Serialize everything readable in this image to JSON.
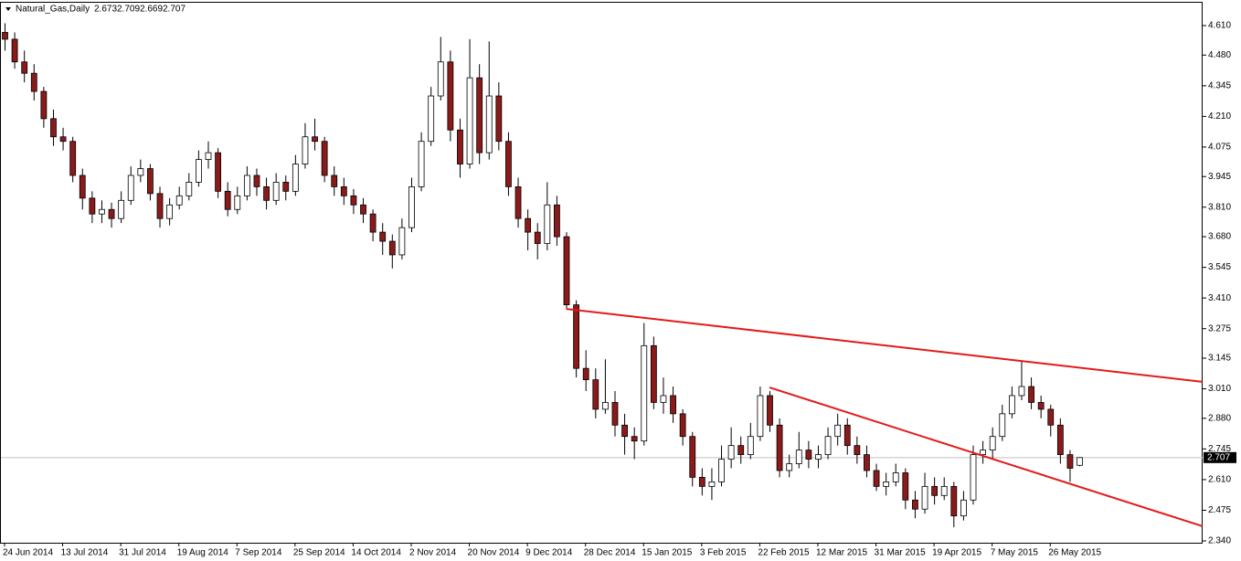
{
  "chart_data": {
    "type": "candlestick",
    "title": "Natural_Gas,Daily",
    "up_color": "#ffffff",
    "down_color": "#8b1a1a",
    "wick_color": "#000000",
    "trendline_color": "#e31a1a",
    "ylim": [
      2.34,
      4.61
    ],
    "yticks": [
      {
        "value": 4.61,
        "label": "4.610"
      },
      {
        "value": 4.48,
        "label": "4.480"
      },
      {
        "value": 4.345,
        "label": "4.345"
      },
      {
        "value": 4.21,
        "label": "4.210"
      },
      {
        "value": 4.075,
        "label": "4.075"
      },
      {
        "value": 3.945,
        "label": "3.945"
      },
      {
        "value": 3.81,
        "label": "3.810"
      },
      {
        "value": 3.68,
        "label": "3.680"
      },
      {
        "value": 3.545,
        "label": "3.545"
      },
      {
        "value": 3.41,
        "label": "3.410"
      },
      {
        "value": 3.275,
        "label": "3.275"
      },
      {
        "value": 3.145,
        "label": "3.145"
      },
      {
        "value": 3.01,
        "label": "3.010"
      },
      {
        "value": 2.88,
        "label": "2.880"
      },
      {
        "value": 2.745,
        "label": "2.745"
      },
      {
        "value": 2.61,
        "label": "2.610"
      },
      {
        "value": 2.475,
        "label": "2.475"
      },
      {
        "value": 2.34,
        "label": "2.340"
      }
    ],
    "categories": [
      "24 Jun 2014",
      null,
      null,
      null,
      null,
      null,
      "13 Jul 2014",
      null,
      null,
      null,
      null,
      null,
      "31 Jul 2014",
      null,
      null,
      null,
      null,
      null,
      "19 Aug 2014",
      null,
      null,
      null,
      null,
      null,
      "7 Sep 2014",
      null,
      null,
      null,
      null,
      null,
      "25 Sep 2014",
      null,
      null,
      null,
      null,
      null,
      "14 Oct 2014",
      null,
      null,
      null,
      null,
      null,
      "2 Nov 2014",
      null,
      null,
      null,
      null,
      null,
      "20 Nov 2014",
      null,
      null,
      null,
      null,
      null,
      "9 Dec 2014",
      null,
      null,
      null,
      null,
      null,
      "28 Dec 2014",
      null,
      null,
      null,
      null,
      null,
      "15 Jan 2015",
      null,
      null,
      null,
      null,
      null,
      "3 Feb 2015",
      null,
      null,
      null,
      null,
      null,
      "22 Feb 2015",
      null,
      null,
      null,
      null,
      null,
      "12 Mar 2015",
      null,
      null,
      null,
      null,
      null,
      "31 Mar 2015",
      null,
      null,
      null,
      null,
      null,
      "19 Apr 2015",
      null,
      null,
      null,
      null,
      null,
      "7 May 2015",
      null,
      null,
      null,
      null,
      null,
      "26 May 2015",
      null,
      null,
      null
    ],
    "candles": [
      [
        4.58,
        4.62,
        4.5,
        4.55
      ],
      [
        4.55,
        4.58,
        4.42,
        4.45
      ],
      [
        4.45,
        4.5,
        4.36,
        4.4
      ],
      [
        4.4,
        4.44,
        4.28,
        4.32
      ],
      [
        4.32,
        4.34,
        4.16,
        4.2
      ],
      [
        4.2,
        4.24,
        4.08,
        4.12
      ],
      [
        4.12,
        4.16,
        4.06,
        4.1
      ],
      [
        4.1,
        4.12,
        3.92,
        3.95
      ],
      [
        3.95,
        3.98,
        3.8,
        3.85
      ],
      [
        3.85,
        3.88,
        3.74,
        3.78
      ],
      [
        3.78,
        3.84,
        3.74,
        3.8
      ],
      [
        3.8,
        3.83,
        3.72,
        3.76
      ],
      [
        3.76,
        3.88,
        3.74,
        3.84
      ],
      [
        3.84,
        3.99,
        3.82,
        3.95
      ],
      [
        3.95,
        4.02,
        3.92,
        3.98
      ],
      [
        3.98,
        4.0,
        3.84,
        3.87
      ],
      [
        3.87,
        3.9,
        3.72,
        3.76
      ],
      [
        3.76,
        3.85,
        3.73,
        3.82
      ],
      [
        3.82,
        3.9,
        3.8,
        3.86
      ],
      [
        3.86,
        3.96,
        3.84,
        3.92
      ],
      [
        3.92,
        4.06,
        3.9,
        4.02
      ],
      [
        4.02,
        4.1,
        3.98,
        4.05
      ],
      [
        4.05,
        4.07,
        3.85,
        3.88
      ],
      [
        3.88,
        3.92,
        3.77,
        3.8
      ],
      [
        3.8,
        3.9,
        3.78,
        3.86
      ],
      [
        3.86,
        3.99,
        3.84,
        3.95
      ],
      [
        3.95,
        3.98,
        3.86,
        3.9
      ],
      [
        3.9,
        3.94,
        3.8,
        3.84
      ],
      [
        3.84,
        3.96,
        3.82,
        3.92
      ],
      [
        3.92,
        3.95,
        3.84,
        3.88
      ],
      [
        3.88,
        4.04,
        3.86,
        4.0
      ],
      [
        4.0,
        4.18,
        3.98,
        4.12
      ],
      [
        4.12,
        4.2,
        4.06,
        4.1
      ],
      [
        4.1,
        4.12,
        3.92,
        3.95
      ],
      [
        3.95,
        3.99,
        3.86,
        3.9
      ],
      [
        3.9,
        3.94,
        3.82,
        3.86
      ],
      [
        3.86,
        3.89,
        3.78,
        3.82
      ],
      [
        3.82,
        3.85,
        3.74,
        3.78
      ],
      [
        3.78,
        3.8,
        3.66,
        3.7
      ],
      [
        3.7,
        3.74,
        3.6,
        3.66
      ],
      [
        3.66,
        3.69,
        3.54,
        3.6
      ],
      [
        3.6,
        3.76,
        3.58,
        3.72
      ],
      [
        3.72,
        3.94,
        3.7,
        3.9
      ],
      [
        3.9,
        4.14,
        3.88,
        4.1
      ],
      [
        4.1,
        4.34,
        4.08,
        4.3
      ],
      [
        4.3,
        4.56,
        4.28,
        4.45
      ],
      [
        4.45,
        4.5,
        4.1,
        4.15
      ],
      [
        4.15,
        4.2,
        3.94,
        4.0
      ],
      [
        4.0,
        4.55,
        3.98,
        4.38
      ],
      [
        4.38,
        4.44,
        4.0,
        4.05
      ],
      [
        4.05,
        4.54,
        4.02,
        4.3
      ],
      [
        4.3,
        4.36,
        4.06,
        4.1
      ],
      [
        4.1,
        4.14,
        3.86,
        3.9
      ],
      [
        3.9,
        3.94,
        3.72,
        3.76
      ],
      [
        3.76,
        3.8,
        3.62,
        3.7
      ],
      [
        3.7,
        3.74,
        3.58,
        3.65
      ],
      [
        3.65,
        3.92,
        3.62,
        3.82
      ],
      [
        3.82,
        3.86,
        3.64,
        3.68
      ],
      [
        3.68,
        3.7,
        3.36,
        3.38
      ],
      [
        3.38,
        3.4,
        3.06,
        3.1
      ],
      [
        3.1,
        3.18,
        3.0,
        3.05
      ],
      [
        3.05,
        3.1,
        2.88,
        2.92
      ],
      [
        2.92,
        3.14,
        2.9,
        2.95
      ],
      [
        2.95,
        3.0,
        2.8,
        2.85
      ],
      [
        2.85,
        2.9,
        2.72,
        2.8
      ],
      [
        2.8,
        2.84,
        2.7,
        2.78
      ],
      [
        2.78,
        3.3,
        2.76,
        3.2
      ],
      [
        3.2,
        3.24,
        2.92,
        2.95
      ],
      [
        2.95,
        3.06,
        2.9,
        2.98
      ],
      [
        2.98,
        3.02,
        2.86,
        2.9
      ],
      [
        2.9,
        2.92,
        2.76,
        2.8
      ],
      [
        2.8,
        2.82,
        2.58,
        2.62
      ],
      [
        2.62,
        2.66,
        2.54,
        2.58
      ],
      [
        2.58,
        2.66,
        2.52,
        2.6
      ],
      [
        2.6,
        2.76,
        2.58,
        2.7
      ],
      [
        2.7,
        2.84,
        2.66,
        2.76
      ],
      [
        2.76,
        2.8,
        2.68,
        2.72
      ],
      [
        2.72,
        2.86,
        2.7,
        2.8
      ],
      [
        2.8,
        3.02,
        2.78,
        2.98
      ],
      [
        2.98,
        3.0,
        2.82,
        2.85
      ],
      [
        2.85,
        2.88,
        2.62,
        2.65
      ],
      [
        2.65,
        2.72,
        2.62,
        2.68
      ],
      [
        2.68,
        2.82,
        2.66,
        2.74
      ],
      [
        2.74,
        2.78,
        2.66,
        2.7
      ],
      [
        2.7,
        2.76,
        2.66,
        2.72
      ],
      [
        2.72,
        2.84,
        2.7,
        2.8
      ],
      [
        2.8,
        2.9,
        2.76,
        2.85
      ],
      [
        2.85,
        2.88,
        2.72,
        2.76
      ],
      [
        2.76,
        2.8,
        2.68,
        2.72
      ],
      [
        2.72,
        2.76,
        2.62,
        2.65
      ],
      [
        2.65,
        2.68,
        2.56,
        2.58
      ],
      [
        2.58,
        2.64,
        2.54,
        2.6
      ],
      [
        2.6,
        2.68,
        2.58,
        2.64
      ],
      [
        2.64,
        2.66,
        2.48,
        2.52
      ],
      [
        2.52,
        2.56,
        2.44,
        2.48
      ],
      [
        2.48,
        2.64,
        2.46,
        2.58
      ],
      [
        2.58,
        2.62,
        2.5,
        2.54
      ],
      [
        2.54,
        2.62,
        2.52,
        2.58
      ],
      [
        2.58,
        2.6,
        2.4,
        2.45
      ],
      [
        2.45,
        2.56,
        2.43,
        2.52
      ],
      [
        2.52,
        2.76,
        2.5,
        2.72
      ],
      [
        2.72,
        2.78,
        2.68,
        2.74
      ],
      [
        2.74,
        2.84,
        2.7,
        2.8
      ],
      [
        2.8,
        2.94,
        2.78,
        2.9
      ],
      [
        2.9,
        3.02,
        2.88,
        2.98
      ],
      [
        2.98,
        3.13,
        2.96,
        3.02
      ],
      [
        3.02,
        3.06,
        2.92,
        2.95
      ],
      [
        2.95,
        2.98,
        2.88,
        2.92
      ],
      [
        2.92,
        2.94,
        2.8,
        2.85
      ],
      [
        2.85,
        2.88,
        2.68,
        2.72
      ],
      [
        2.72,
        2.74,
        2.6,
        2.66
      ],
      [
        2.673,
        2.709,
        2.669,
        2.707
      ]
    ],
    "trendlines": [
      {
        "start": [
          58,
          3.362
        ],
        "end": [
          123.7,
          3.041
        ]
      },
      {
        "start": [
          79,
          3.016
        ],
        "end": [
          123.7,
          2.405
        ]
      }
    ]
  }
}
